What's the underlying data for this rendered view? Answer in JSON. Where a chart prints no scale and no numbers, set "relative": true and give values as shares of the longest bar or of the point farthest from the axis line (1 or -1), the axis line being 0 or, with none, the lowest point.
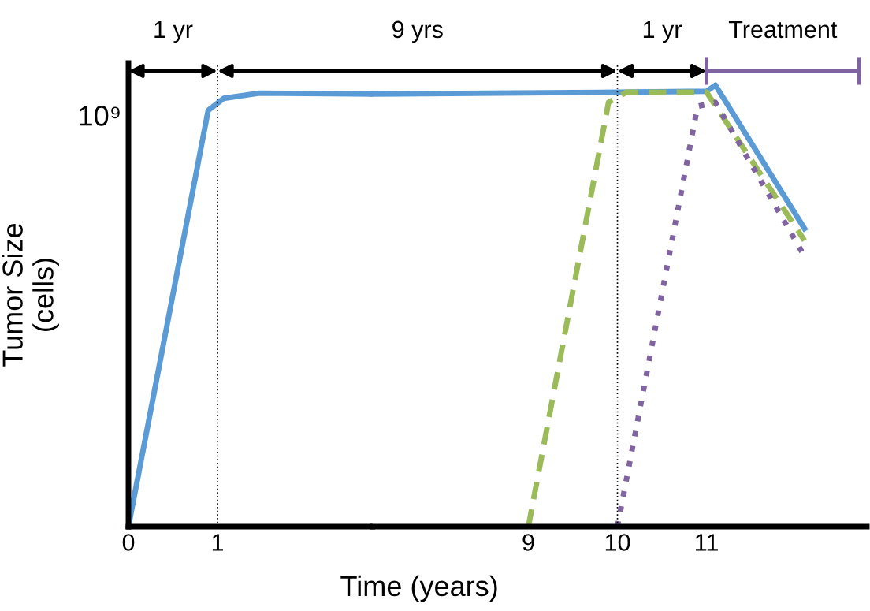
{
  "chart_data": [
    {
      "type": "line",
      "ylabel": "Tumor Size\n(cells)",
      "relative": true,
      "xlim": [
        0,
        2.74
      ],
      "xticks": [
        0,
        1
      ],
      "series": [
        {
          "color": "#5b9bd5",
          "line_style": "solid",
          "x": [
            0,
            0.895,
            1.07,
            1.47,
            2.74
          ],
          "values": [
            0,
            0.96,
            0.988,
            1.0,
            0.998
          ]
        }
      ],
      "ref_lines": [
        {
          "axis": "x",
          "value": 1,
          "color": "#000000",
          "line_style": "dotted"
        }
      ],
      "annotations": [
        "10⁹",
        "1 yr",
        "9 yrs"
      ],
      "grid": false,
      "legend": false
    },
    {
      "type": "line",
      "xlabel": "Time (years)",
      "relative": true,
      "xlim": [
        7.25,
        12.8
      ],
      "xticks": [
        9,
        10,
        11
      ],
      "series": [
        {
          "color": "#5b9bd5",
          "line_style": "solid",
          "x": [
            7.25,
            10.0,
            11.0,
            11.1,
            12.1
          ],
          "values": [
            0.98,
            0.984,
            0.986,
            1.0,
            0.675
          ]
        },
        {
          "color": "#9bbb59",
          "line_style": "dashed",
          "x": [
            9.0,
            9.9,
            10.1,
            11.0,
            12.1
          ],
          "values": [
            0,
            0.961,
            0.984,
            0.984,
            0.648
          ]
        },
        {
          "color": "#8064a2",
          "line_style": "dotted",
          "x": [
            10.0,
            10.9,
            11.1,
            12.1
          ],
          "values": [
            0,
            0.952,
            0.961,
            0.6125
          ]
        }
      ],
      "ref_lines": [
        {
          "axis": "x",
          "value": 10,
          "color": "#000000",
          "line_style": "dotted"
        }
      ],
      "annotations": [
        "1 yr",
        "Treatment"
      ],
      "grid": false,
      "legend": false
    }
  ]
}
